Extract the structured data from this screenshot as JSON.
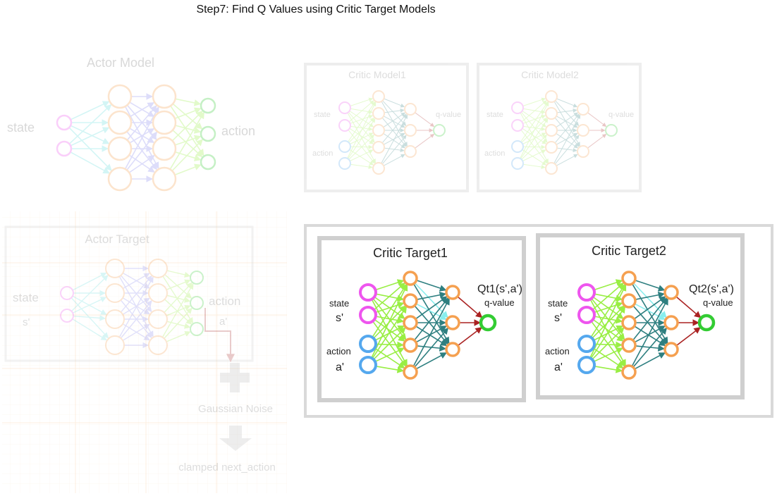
{
  "title": "Step7: Find Q Values using Critic Target Models",
  "actor_model": {
    "title": "Actor Model",
    "input_label": "state",
    "output_label": "action"
  },
  "critic_model1": {
    "title": "Critic Model1",
    "state_label": "state",
    "action_label": "action",
    "output_label": "q-value"
  },
  "critic_model2": {
    "title": "Critic Model2",
    "state_label": "state",
    "action_label": "action",
    "output_label": "q-value"
  },
  "actor_target": {
    "title": "Actor Target",
    "state_label": "state",
    "state_symbol": "s'",
    "output_label": "action",
    "output_symbol": "a'",
    "noise_label": "Gaussian Noise",
    "result_label": "clamped next_action"
  },
  "critic_target1": {
    "title": "Critic Target1",
    "state_label": "state",
    "state_symbol": "s'",
    "action_label": "action",
    "action_symbol": "a'",
    "q_label": "Qt1(s',a')",
    "output_label": "q-value"
  },
  "critic_target2": {
    "title": "Critic Target2",
    "state_label": "state",
    "state_symbol": "s'",
    "action_label": "action",
    "action_symbol": "a'",
    "q_label": "Qt2(s',a')",
    "output_label": "q-value"
  },
  "colors": {
    "state_node": "#ee55ee",
    "action_node": "#55a8ee",
    "hidden_node": "#f5a050",
    "output_node": "#33cc33",
    "edge_green": "#99ee44",
    "edge_cyan": "#88eeee",
    "edge_teal": "#2e7f80",
    "edge_red": "#aa2222",
    "actor_edge_blue": "#8888ee",
    "box_border": "#d0d0d0"
  }
}
